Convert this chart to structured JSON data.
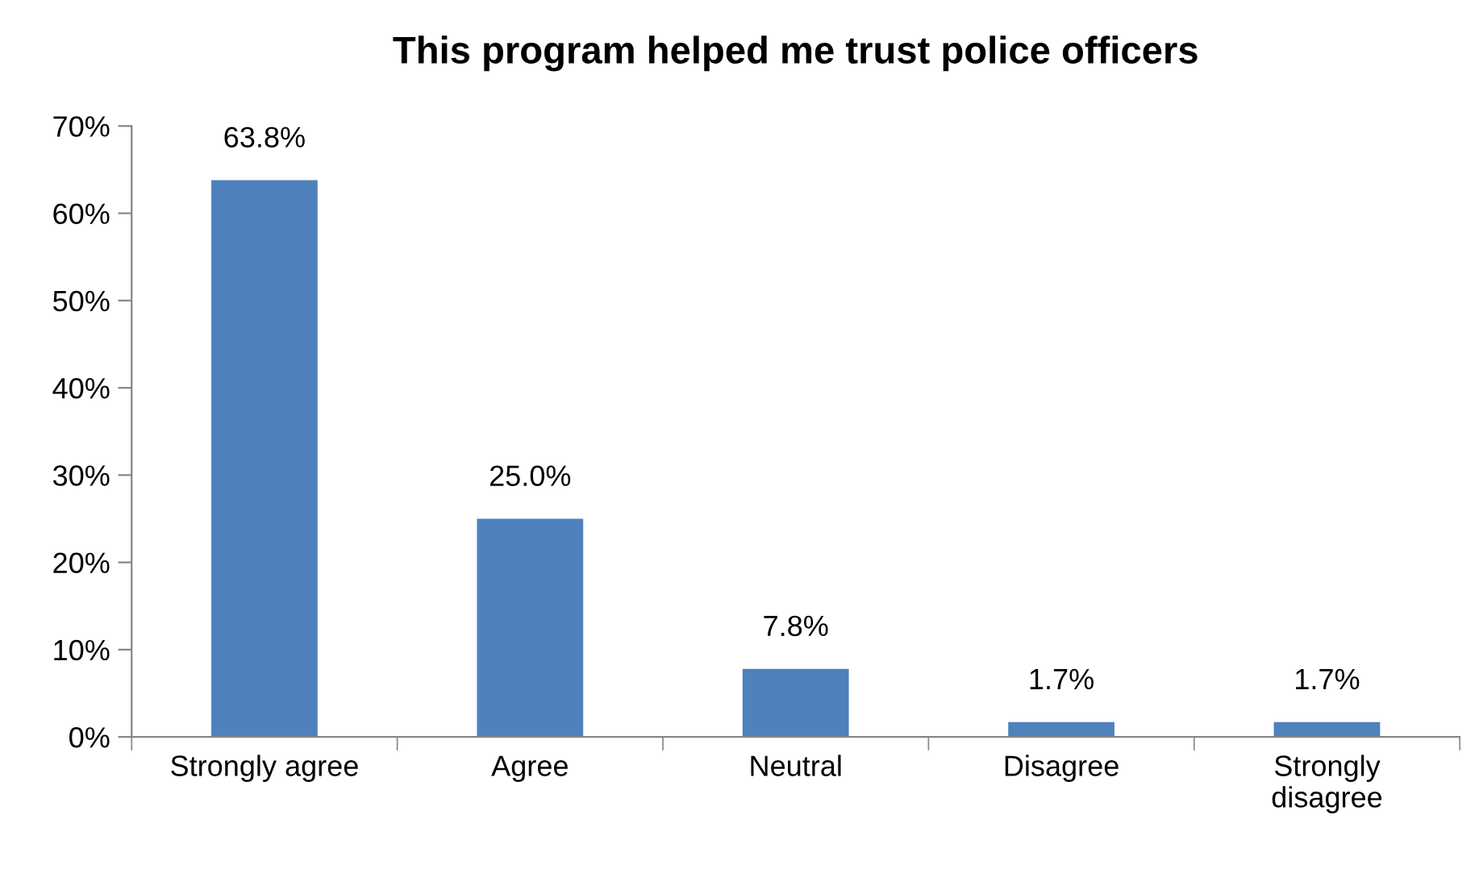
{
  "chart_data": {
    "type": "bar",
    "title": "This program helped me trust police officers",
    "categories": [
      "Strongly agree",
      "Agree",
      "Neutral",
      "Disagree",
      "Strongly\ndisagree"
    ],
    "values": [
      63.8,
      25.0,
      7.8,
      1.7,
      1.7
    ],
    "value_labels": [
      "63.8%",
      "25.0%",
      "7.8%",
      "1.7%",
      "1.7%"
    ],
    "color": "#4f81bd",
    "ylim": [
      0,
      70
    ],
    "yticks": [
      {
        "value": 0,
        "label": "0%"
      },
      {
        "value": 10,
        "label": "10%"
      },
      {
        "value": 20,
        "label": "20%"
      },
      {
        "value": 30,
        "label": "30%"
      },
      {
        "value": 40,
        "label": "40%"
      },
      {
        "value": 50,
        "label": "50%"
      },
      {
        "value": 60,
        "label": "60%"
      },
      {
        "value": 70,
        "label": "70%"
      }
    ],
    "grid": false,
    "legend": false
  }
}
